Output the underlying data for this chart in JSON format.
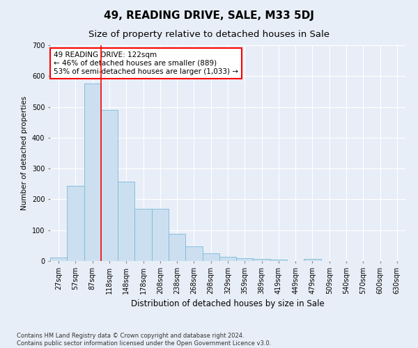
{
  "title": "49, READING DRIVE, SALE, M33 5DJ",
  "subtitle": "Size of property relative to detached houses in Sale",
  "xlabel": "Distribution of detached houses by size in Sale",
  "ylabel": "Number of detached properties",
  "bar_labels": [
    "27sqm",
    "57sqm",
    "87sqm",
    "118sqm",
    "148sqm",
    "178sqm",
    "208sqm",
    "238sqm",
    "268sqm",
    "298sqm",
    "329sqm",
    "359sqm",
    "389sqm",
    "419sqm",
    "449sqm",
    "479sqm",
    "509sqm",
    "540sqm",
    "570sqm",
    "600sqm",
    "630sqm"
  ],
  "bar_values": [
    12,
    243,
    575,
    490,
    258,
    170,
    170,
    88,
    47,
    25,
    13,
    10,
    7,
    5,
    0,
    6,
    0,
    0,
    0,
    0,
    0
  ],
  "bar_color": "#ccdff0",
  "bar_edge_color": "#7ab8d9",
  "red_line_index": 3,
  "annotation_text": "49 READING DRIVE: 122sqm\n← 46% of detached houses are smaller (889)\n53% of semi-detached houses are larger (1,033) →",
  "annotation_box_color": "white",
  "annotation_box_edge_color": "red",
  "ylim": [
    0,
    700
  ],
  "yticks": [
    0,
    100,
    200,
    300,
    400,
    500,
    600,
    700
  ],
  "background_color": "#e8eef7",
  "grid_color": "white",
  "footer": "Contains HM Land Registry data © Crown copyright and database right 2024.\nContains public sector information licensed under the Open Government Licence v3.0.",
  "title_fontsize": 11,
  "subtitle_fontsize": 9.5,
  "xlabel_fontsize": 8.5,
  "ylabel_fontsize": 7.5,
  "tick_fontsize": 7,
  "annotation_fontsize": 7.5,
  "footer_fontsize": 6
}
